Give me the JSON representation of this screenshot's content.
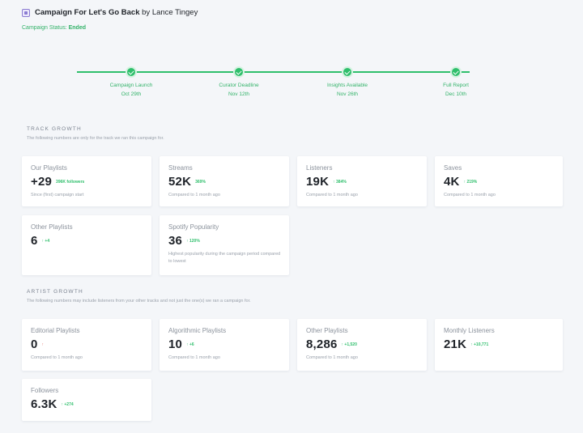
{
  "header": {
    "campaign_prefix": "Campaign For ",
    "track_title": "Let's Go Back",
    "by_text": " by ",
    "artist": "Lance Tingey",
    "status_label": "Campaign Status: ",
    "status_value": "Ended"
  },
  "timeline": [
    {
      "label": "Campaign Launch",
      "date": "Oct 29th"
    },
    {
      "label": "Curator Deadline",
      "date": "Nov 12th"
    },
    {
      "label": "Insights Available",
      "date": "Nov 26th"
    },
    {
      "label": "Full Report",
      "date": "Dec 10th"
    }
  ],
  "track_growth": {
    "title": "TRACK GROWTH",
    "subtitle": "The following numbers are only for the track we ran this campaign for.",
    "cards": [
      {
        "label": "Our Playlists",
        "value": "+29",
        "delta": "396K followers",
        "note": "Since (first) campaign start"
      },
      {
        "label": "Streams",
        "value": "52K",
        "delta": "369%",
        "note": "Compared to 1 month ago"
      },
      {
        "label": "Listeners",
        "value": "19K",
        "delta": "↑ 384%",
        "note": "Compared to 1 month ago"
      },
      {
        "label": "Saves",
        "value": "4K",
        "delta": "↑ 219%",
        "note": "Compared to 1 month ago"
      },
      {
        "label": "Other Playlists",
        "value": "6",
        "delta": "↑ +4",
        "note": ""
      },
      {
        "label": "Spotify Popularity",
        "value": "36",
        "delta": "↑ 120%",
        "note": "Highest popularity during the campaign period compared to lowest"
      }
    ]
  },
  "artist_growth": {
    "title": "ARTIST GROWTH",
    "subtitle": "The following numbers may include listeners from your other tracks and not just the one(s) we ran a campaign for.",
    "cards": [
      {
        "label": "Editorial Playlists",
        "value": "0",
        "delta": "↑",
        "note": "Compared to 1 month ago"
      },
      {
        "label": "Algorithmic Playlists",
        "value": "10",
        "delta": "↑ +6",
        "note": "Compared to 1 month ago"
      },
      {
        "label": "Other Playlists",
        "value": "8,286",
        "delta": "↑ +1,520",
        "note": "Compared to 1 month ago"
      },
      {
        "label": "Monthly Listeners",
        "value": "21K",
        "delta": "↑ +10,771",
        "note": ""
      },
      {
        "label": "Followers",
        "value": "6.3K",
        "delta": "↑ +274",
        "note": ""
      }
    ]
  },
  "colors": {
    "accent_green": "#2fbf6c",
    "negative_red": "#e0524a",
    "background": "#f4f6f9",
    "card": "#ffffff"
  }
}
